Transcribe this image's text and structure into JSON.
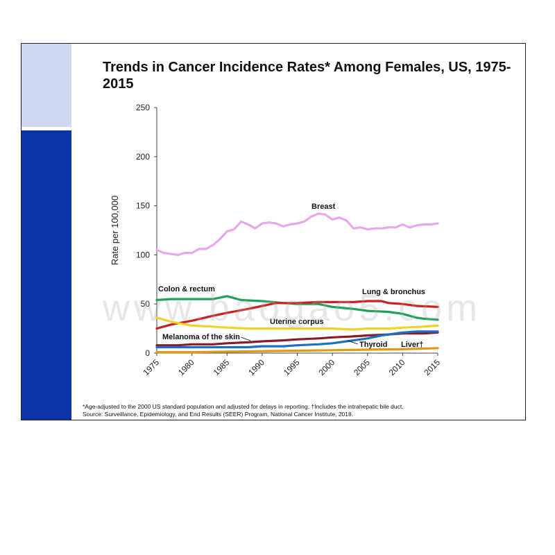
{
  "slide": {
    "title": "Trends in Cancer Incidence Rates* Among Females, US, 1975-2015"
  },
  "footnote": {
    "line1": "*Age-adjusted to the 2000 US standard population and adjusted for delays in reporting. †Includes the intrahepatic bile duct.",
    "line2": "Source: Surveillance, Epidemiology, and End Results (SEER) Program, National Cancer Institute, 2018."
  },
  "watermark": "www.baogao5.com",
  "chart_data": {
    "type": "line",
    "title": "Trends in Cancer Incidence Rates* Among Females, US, 1975-2015",
    "xlabel": "",
    "ylabel": "Rate per 100,000",
    "ylim": [
      0,
      250
    ],
    "xlim": [
      1975,
      2015
    ],
    "yticks": [
      0,
      50,
      100,
      150,
      200,
      250
    ],
    "xticks": [
      1975,
      1980,
      1985,
      1990,
      1995,
      2000,
      2005,
      2010,
      2015
    ],
    "grid": false,
    "legend": "inline-labels",
    "series": [
      {
        "name": "Breast",
        "color": "#e5a8e8",
        "x": [
          1975,
          1976,
          1977,
          1978,
          1979,
          1980,
          1981,
          1982,
          1983,
          1984,
          1985,
          1986,
          1987,
          1988,
          1989,
          1990,
          1991,
          1992,
          1993,
          1994,
          1995,
          1996,
          1997,
          1998,
          1999,
          2000,
          2001,
          2002,
          2003,
          2004,
          2005,
          2006,
          2007,
          2008,
          2009,
          2010,
          2011,
          2012,
          2013,
          2014,
          2015
        ],
        "values": [
          105,
          102,
          101,
          100,
          102,
          102,
          106,
          106,
          110,
          116,
          124,
          126,
          134,
          131,
          127,
          132,
          133,
          132,
          129,
          131,
          132,
          134,
          139,
          142,
          141,
          136,
          138,
          135,
          127,
          128,
          126,
          127,
          127,
          128,
          128,
          131,
          128,
          130,
          131,
          131,
          132
        ]
      },
      {
        "name": "Colon & rectum",
        "color": "#1fa05a",
        "x": [
          1975,
          1977,
          1980,
          1983,
          1985,
          1987,
          1990,
          1993,
          1995,
          1998,
          2000,
          2003,
          2005,
          2008,
          2010,
          2012,
          2013,
          2015
        ],
        "values": [
          54,
          55,
          55,
          55,
          58,
          54,
          53,
          51,
          50,
          50,
          47,
          45,
          43,
          42,
          40,
          36,
          35,
          34
        ]
      },
      {
        "name": "Lung & bronchus",
        "color": "#cc2020",
        "x": [
          1975,
          1977,
          1980,
          1983,
          1985,
          1988,
          1990,
          1992,
          1995,
          1998,
          2000,
          2003,
          2005,
          2007,
          2008,
          2010,
          2012,
          2015
        ],
        "values": [
          25,
          29,
          33,
          38,
          41,
          45,
          48,
          51,
          51,
          52,
          52,
          52,
          53,
          53,
          51,
          50,
          48,
          47
        ]
      },
      {
        "name": "Uterine corpus",
        "color": "#f1d22a",
        "x": [
          1975,
          1977,
          1980,
          1983,
          1985,
          1988,
          1990,
          1993,
          1995,
          1998,
          2000,
          2003,
          2005,
          2008,
          2010,
          2013,
          2015
        ],
        "values": [
          36,
          32,
          28,
          27,
          26,
          25,
          25,
          25,
          25,
          25,
          25,
          24,
          25,
          25,
          26,
          27,
          28
        ]
      },
      {
        "name": "Melanoma of the skin",
        "color": "#8a1a28",
        "x": [
          1975,
          1978,
          1980,
          1983,
          1985,
          1988,
          1990,
          1993,
          1995,
          1998,
          2000,
          2003,
          2005,
          2008,
          2010,
          2013,
          2015
        ],
        "values": [
          8,
          8,
          9,
          9,
          10,
          11,
          12,
          13,
          14,
          15,
          16,
          17,
          18,
          19,
          20,
          20,
          21
        ]
      },
      {
        "name": "Thyroid",
        "color": "#1d6ec0",
        "x": [
          1975,
          1978,
          1980,
          1983,
          1985,
          1988,
          1990,
          1993,
          1995,
          1998,
          2000,
          2002,
          2005,
          2007,
          2010,
          2012,
          2015
        ],
        "values": [
          6,
          6,
          6,
          6,
          6,
          6,
          7,
          7,
          8,
          9,
          10,
          12,
          15,
          18,
          21,
          22,
          22
        ]
      },
      {
        "name": "Liver†",
        "color": "#e09a12",
        "x": [
          1975,
          1980,
          1985,
          1990,
          1995,
          2000,
          2005,
          2010,
          2015
        ],
        "values": [
          1,
          1,
          1.5,
          2,
          2.5,
          3,
          3.5,
          4,
          5
        ]
      }
    ]
  }
}
